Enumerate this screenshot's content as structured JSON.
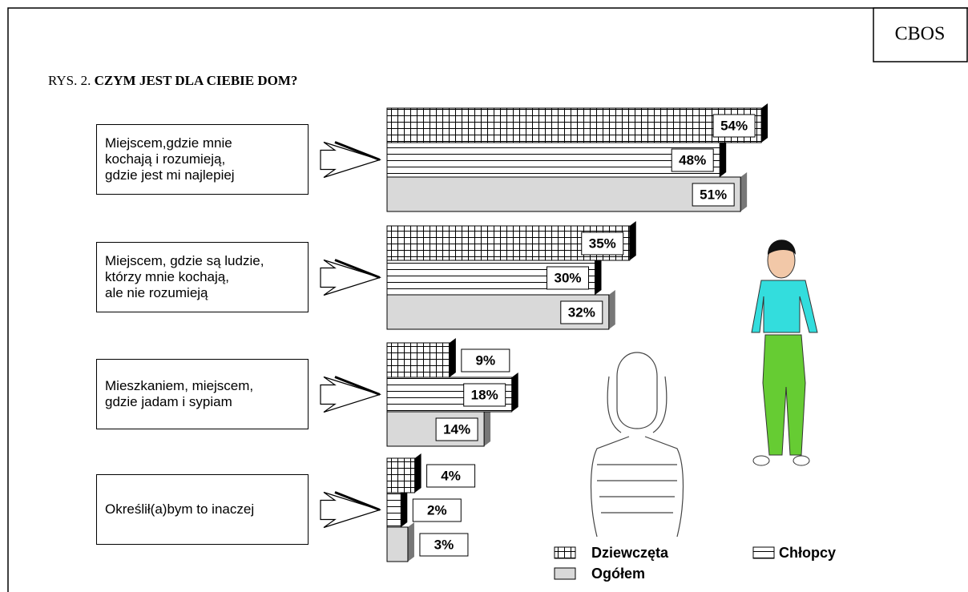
{
  "chart_data": {
    "type": "bar",
    "source": "CBOS",
    "figure_label": "RYS. 2.",
    "title": "CZYM JEST DLA CIEBIE DOM?",
    "categories": [
      "Miejscem,gdzie mnie\nkochają i rozumieją,\ngdzie jest mi najlepiej",
      "Miejscem, gdzie są ludzie,\nktórzy mnie kochają,\nale nie rozumieją",
      "Mieszkaniem, miejscem,\ngdzie jadam i sypiam",
      "Określił(a)bym to inaczej"
    ],
    "series": [
      {
        "name": "Dziewczęta",
        "color": "#ffffff",
        "pattern": "grid",
        "values": [
          54,
          35,
          9,
          4
        ],
        "value_labels": [
          "54%",
          "35%",
          "9%",
          "4%"
        ]
      },
      {
        "name": "Chłopcy",
        "color": "#ffffff",
        "pattern": "hlines",
        "values": [
          48,
          30,
          18,
          2
        ],
        "value_labels": [
          "48%",
          "30%",
          "18%",
          "2%"
        ]
      },
      {
        "name": "Ogółem",
        "color": "#d9d9d9",
        "pattern": "none",
        "values": [
          51,
          32,
          14,
          3
        ],
        "value_labels": [
          "51%",
          "32%",
          "14%",
          "3%"
        ]
      }
    ]
  }
}
